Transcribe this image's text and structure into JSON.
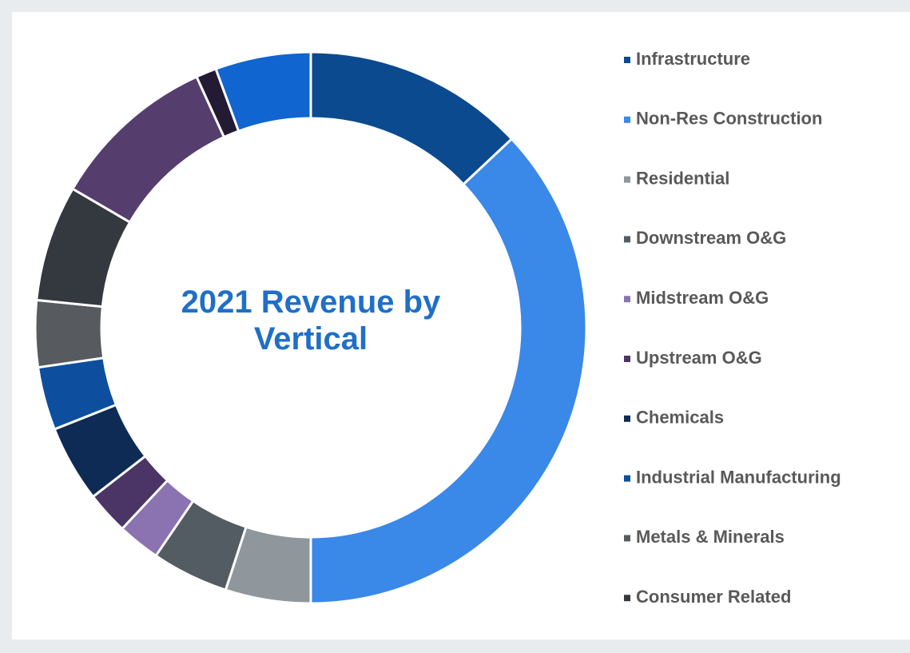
{
  "chart_data": {
    "type": "donut",
    "title": "2021 Revenue by Vertical",
    "categories": [
      "Infrastructure",
      "Non-Res Construction",
      "Residential",
      "Downstream O&G",
      "Midstream O&G",
      "Upstream O&G",
      "Chemicals",
      "Industrial Manufacturing",
      "Metals & Minerals",
      "Consumer Related",
      null,
      null,
      null
    ],
    "values": [
      13,
      37,
      5,
      4.5,
      2.5,
      2.5,
      4.5,
      3.7,
      3.9,
      6.8,
      9.8,
      1.2,
      5.6
    ],
    "colors": [
      "#0b4a8f",
      "#3a88e8",
      "#8f979d",
      "#535b63",
      "#8b72b0",
      "#4b3566",
      "#0d2b55",
      "#0d4f9e",
      "#575b60",
      "#34393f",
      "#553e6e",
      "#231a33",
      "#1065d0"
    ],
    "legend": "right"
  }
}
